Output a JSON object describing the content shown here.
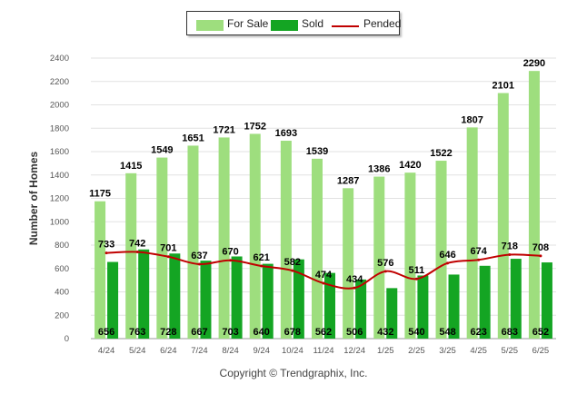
{
  "chart_data": {
    "type": "bar",
    "ylabel": "Number of Homes",
    "ylim": [
      0,
      2400
    ],
    "ytick_step": 200,
    "grid": true,
    "legend_position": "top-center",
    "categories": [
      "4/24",
      "5/24",
      "6/24",
      "7/24",
      "8/24",
      "9/24",
      "10/24",
      "11/24",
      "12/24",
      "1/25",
      "2/25",
      "3/25",
      "4/25",
      "5/25",
      "6/25"
    ],
    "series": [
      {
        "name": "For Sale",
        "type": "bar",
        "color": "#9ede7e",
        "values": [
          1175,
          1415,
          1549,
          1651,
          1721,
          1752,
          1693,
          1539,
          1287,
          1386,
          1420,
          1522,
          1807,
          2101,
          2290
        ]
      },
      {
        "name": "Sold",
        "type": "bar",
        "color": "#14a523",
        "values": [
          656,
          763,
          728,
          667,
          703,
          640,
          678,
          562,
          506,
          432,
          540,
          548,
          623,
          683,
          652
        ]
      },
      {
        "name": "Pended",
        "type": "line",
        "color": "#c00000",
        "values": [
          733,
          742,
          701,
          637,
          670,
          621,
          582,
          474,
          434,
          576,
          511,
          646,
          674,
          718,
          708
        ]
      }
    ]
  },
  "copyright": "Copyright © Trendgraphix, Inc."
}
